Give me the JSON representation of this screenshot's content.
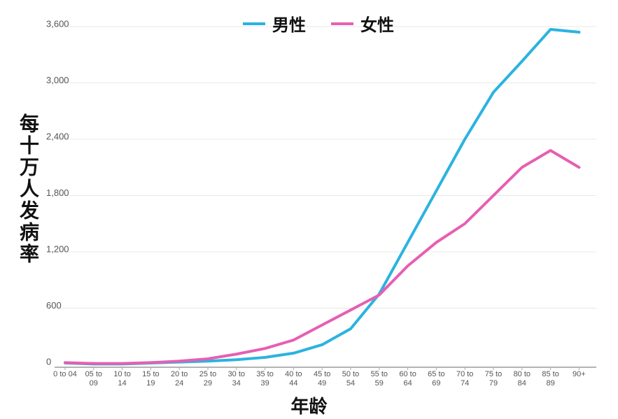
{
  "chart_data": {
    "type": "line",
    "x_label": "年龄",
    "y_label": "每十万人发病率",
    "categories": [
      "0 to 04",
      "05 to 09",
      "10 to 14",
      "15 to 19",
      "20 to 24",
      "25 to 29",
      "30 to 34",
      "35 to 39",
      "40 to 44",
      "45 to 49",
      "50 to 54",
      "55 to 59",
      "60 to 64",
      "65 to 69",
      "70 to 74",
      "75 to 79",
      "80 to 84",
      "85 to 89",
      "90+"
    ],
    "series": [
      {
        "name": "男性",
        "color": "#2bb3e0",
        "values": [
          15,
          5,
          5,
          15,
          25,
          35,
          50,
          75,
          120,
          210,
          380,
          750,
          1300,
          1850,
          2400,
          2900,
          3230,
          3570,
          3540
        ]
      },
      {
        "name": "女性",
        "color": "#e65fb3",
        "values": [
          20,
          10,
          10,
          20,
          35,
          60,
          110,
          170,
          260,
          420,
          580,
          740,
          1050,
          1300,
          1500,
          1800,
          2100,
          2280,
          2100
        ]
      }
    ],
    "ylim": [
      0,
      3600
    ],
    "yticks": [
      0,
      600,
      {
        "value": 1200,
        "label": "1,200"
      },
      {
        "value": 1800,
        "label": "1,800"
      },
      {
        "value": 2400,
        "label": "2,400"
      },
      {
        "value": 3000,
        "label": "3,000"
      },
      {
        "value": 3600,
        "label": "3,600"
      }
    ],
    "grid": true,
    "legend": "top"
  }
}
